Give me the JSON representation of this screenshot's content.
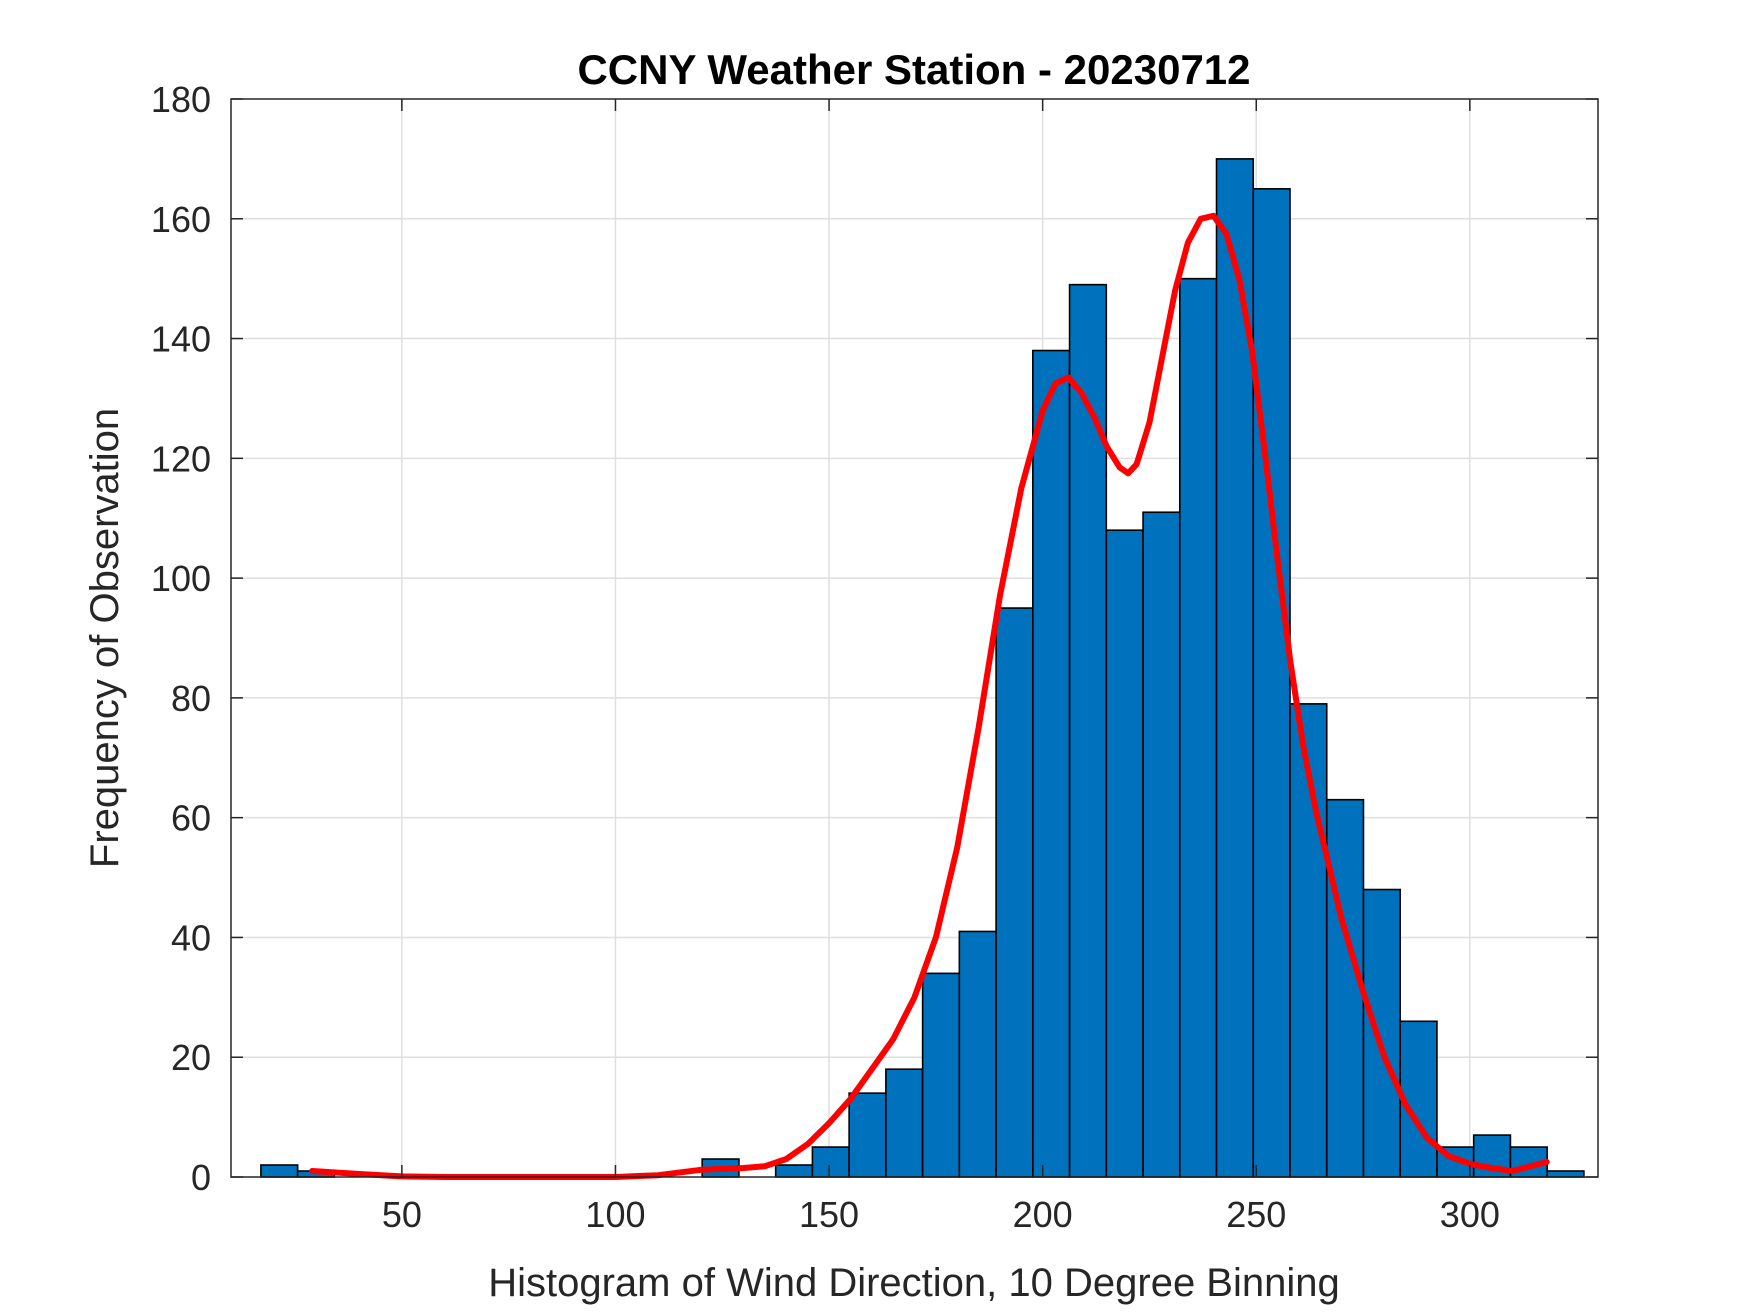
{
  "chart_data": {
    "type": "bar",
    "title": "CCNY Weather Station - 20230712",
    "xlabel": "Histogram of Wind Direction, 10 Degree Binning",
    "ylabel": "Frequency of Observation",
    "xlim": [
      10,
      330
    ],
    "ylim": [
      0,
      180
    ],
    "xticks": [
      50,
      100,
      150,
      200,
      250,
      300
    ],
    "yticks": [
      0,
      20,
      40,
      60,
      80,
      100,
      120,
      140,
      160,
      180
    ],
    "grid": true,
    "bin_width": 8.6,
    "bar_color": "#0072BD",
    "fit_color": "#FF0000",
    "bars": [
      {
        "x": 21.3,
        "value": 2
      },
      {
        "x": 29.9,
        "value": 1
      },
      {
        "x": 124.6,
        "value": 3
      },
      {
        "x": 141.8,
        "value": 2
      },
      {
        "x": 150.4,
        "value": 5
      },
      {
        "x": 159.0,
        "value": 14
      },
      {
        "x": 167.6,
        "value": 18
      },
      {
        "x": 176.2,
        "value": 34
      },
      {
        "x": 184.8,
        "value": 41
      },
      {
        "x": 193.4,
        "value": 95
      },
      {
        "x": 202.0,
        "value": 138
      },
      {
        "x": 210.6,
        "value": 149
      },
      {
        "x": 219.2,
        "value": 108
      },
      {
        "x": 227.8,
        "value": 111
      },
      {
        "x": 236.4,
        "value": 150
      },
      {
        "x": 245.0,
        "value": 170
      },
      {
        "x": 253.6,
        "value": 165
      },
      {
        "x": 262.2,
        "value": 79
      },
      {
        "x": 270.8,
        "value": 63
      },
      {
        "x": 279.4,
        "value": 48
      },
      {
        "x": 288.0,
        "value": 26
      },
      {
        "x": 296.6,
        "value": 5
      },
      {
        "x": 305.2,
        "value": 7
      },
      {
        "x": 313.8,
        "value": 5
      },
      {
        "x": 322.4,
        "value": 1
      }
    ],
    "fit_curve": {
      "x": [
        29,
        40,
        50,
        60,
        70,
        80,
        90,
        100,
        110,
        120,
        130,
        135,
        140,
        145,
        150,
        155,
        160,
        165,
        170,
        175,
        180,
        185,
        190,
        195,
        200,
        203,
        206,
        209,
        212,
        215,
        218,
        220,
        222,
        225,
        228,
        231,
        234,
        237,
        240,
        243,
        246,
        249,
        252,
        255,
        258,
        261,
        264,
        267,
        270,
        275,
        280,
        285,
        290,
        295,
        300,
        305,
        310,
        318
      ],
      "y": [
        1.0,
        0.5,
        0.1,
        0.0,
        0.0,
        0.0,
        0.0,
        0.0,
        0.3,
        1.2,
        1.5,
        1.8,
        3.0,
        5.5,
        9.0,
        13.0,
        18.0,
        23.0,
        30.0,
        40.0,
        55.0,
        75.0,
        97.0,
        115.0,
        128.0,
        132.5,
        133.5,
        131.0,
        127.0,
        122.0,
        118.5,
        117.5,
        119.0,
        126.0,
        137.0,
        148.0,
        156.0,
        160.0,
        160.5,
        157.5,
        150.0,
        138.0,
        121.0,
        103.0,
        86.0,
        72.0,
        61.0,
        52.0,
        43.0,
        31.0,
        20.0,
        12.0,
        6.5,
        3.5,
        2.2,
        1.5,
        1.0,
        2.5
      ]
    }
  }
}
